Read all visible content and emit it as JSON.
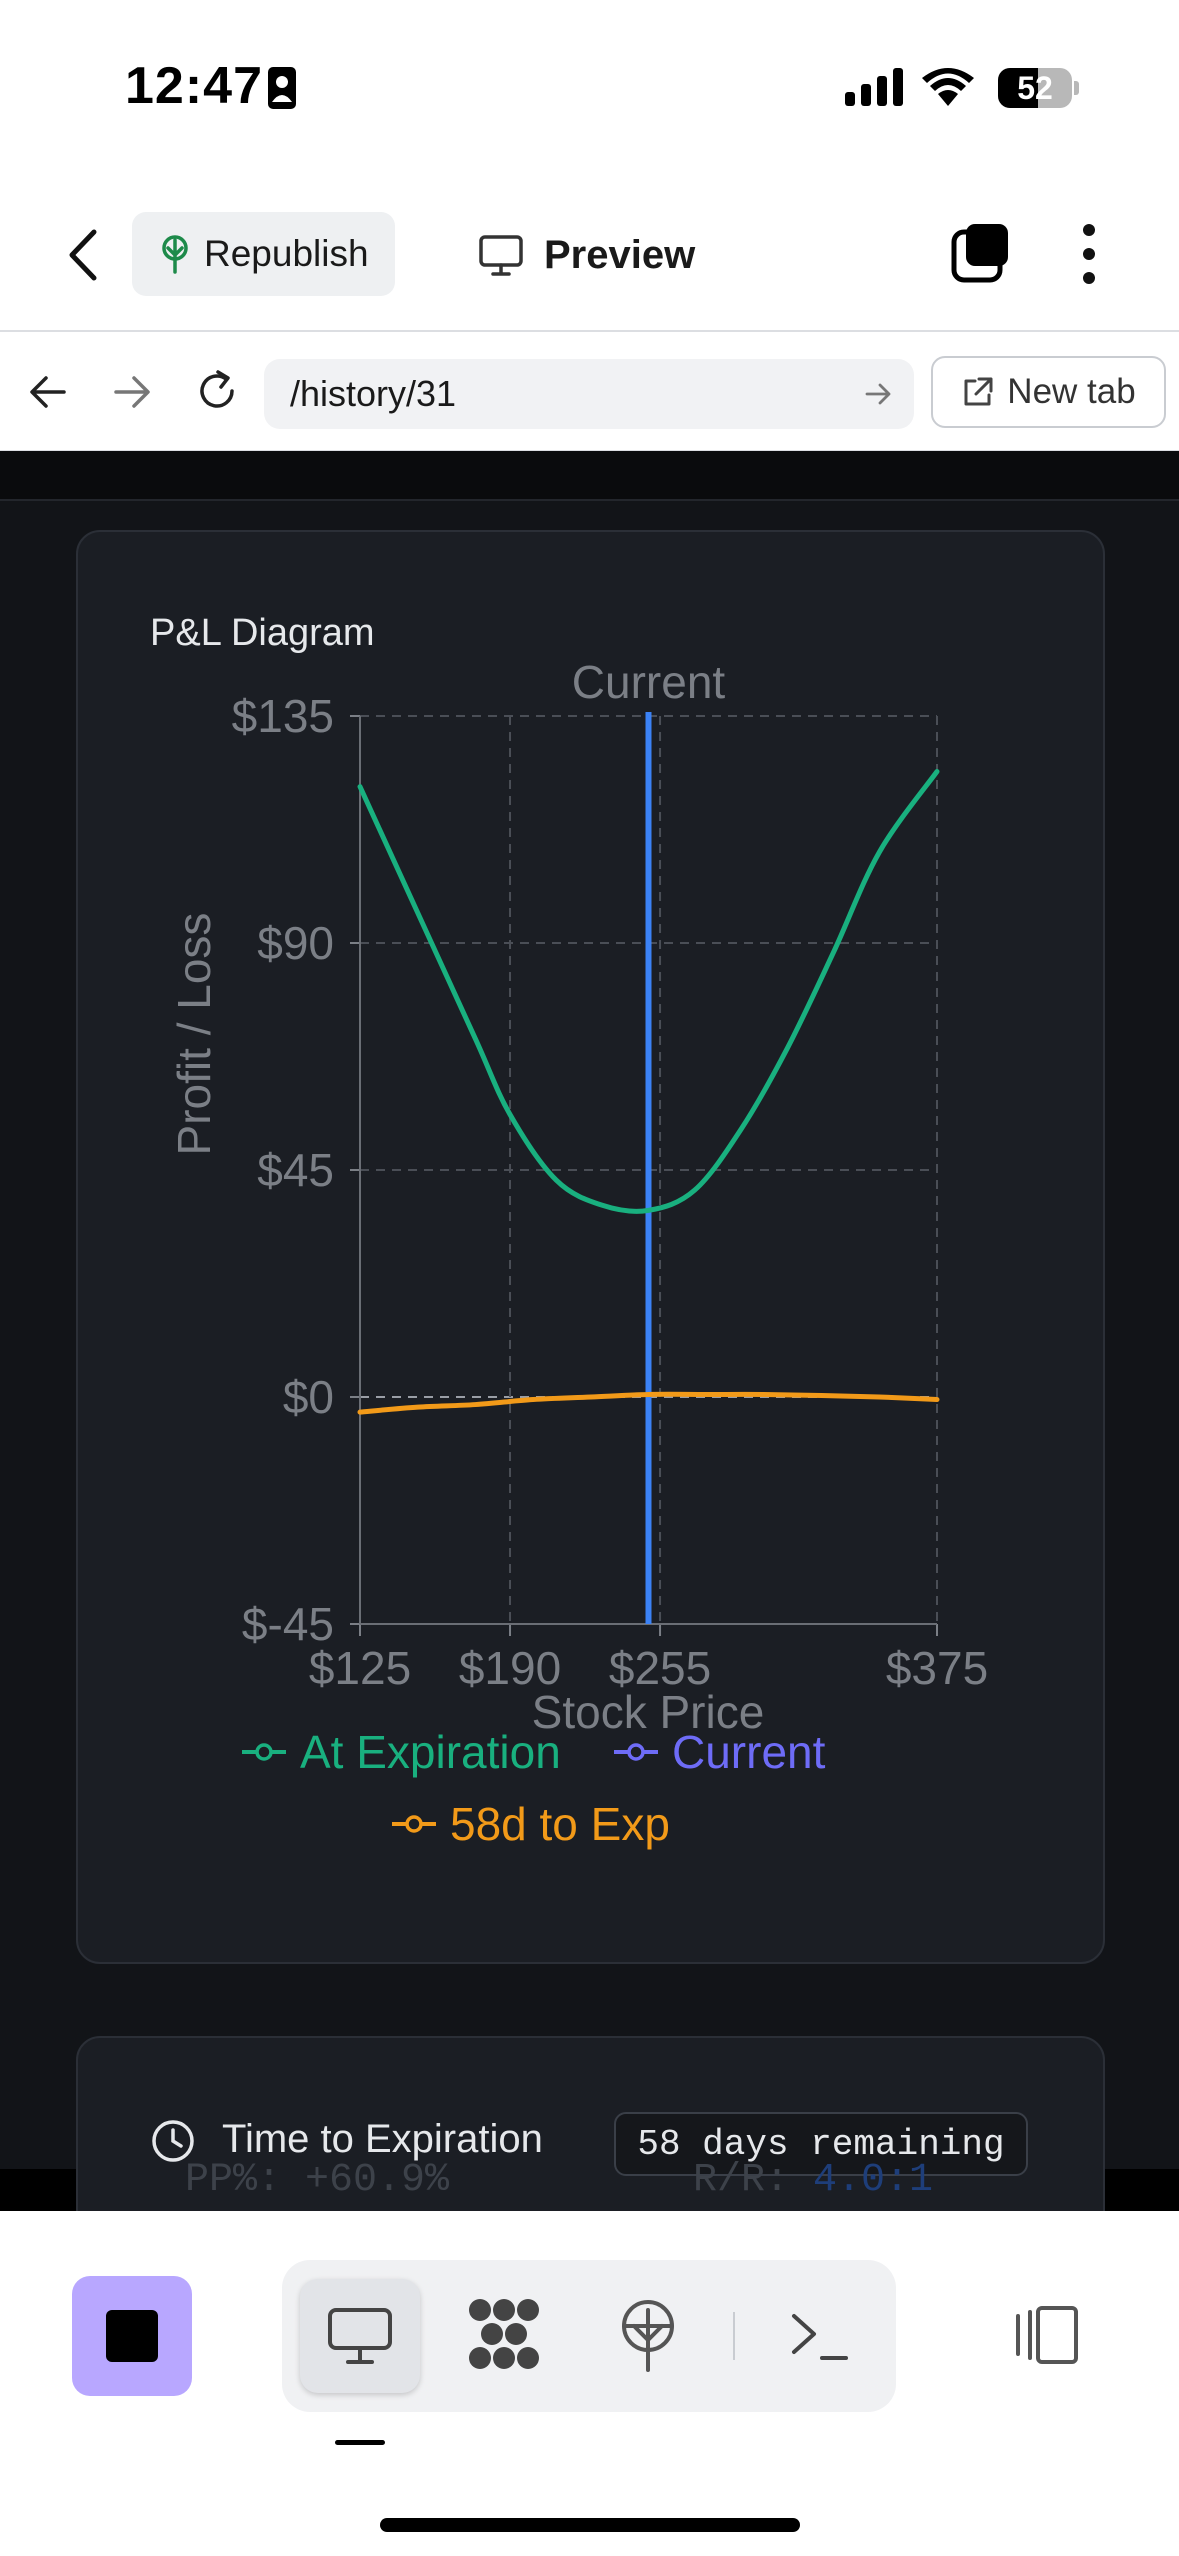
{
  "status_bar": {
    "time": "12:47",
    "battery": "52"
  },
  "header": {
    "republish_label": "Republish",
    "preview_label": "Preview"
  },
  "url_bar": {
    "path": "/history/31",
    "new_tab_label": "New tab"
  },
  "card": {
    "title": "P&L Diagram",
    "time_to_expiration_label": "Time to Expiration",
    "time_to_expiration_value": "58 days remaining",
    "behind_text_1": "PP%: +60.9%",
    "behind_text_2_label": "R/R: ",
    "behind_text_2_value": "4.0:1"
  },
  "chart_data": {
    "type": "line",
    "xlabel": "Stock Price",
    "ylabel": "Profit / Loss",
    "x_ticks": [
      "$125",
      "$190",
      "$255",
      "$375"
    ],
    "y_ticks": [
      "$135",
      "$90",
      "$45",
      "$0",
      "$-45"
    ],
    "xlim": [
      125,
      375
    ],
    "ylim": [
      -45,
      135
    ],
    "current_price": 250,
    "reference_label": "Current",
    "series": [
      {
        "name": "At Expiration",
        "color": "#19b07f",
        "x": [
          125,
          150,
          175,
          190,
          210,
          230,
          250,
          270,
          290,
          310,
          330,
          350,
          375
        ],
        "y": [
          121,
          96,
          71,
          56,
          43,
          38,
          37,
          41,
          53,
          69,
          88,
          108,
          124
        ]
      },
      {
        "name": "Current",
        "color": "#6e6cf7",
        "x": [],
        "y": []
      },
      {
        "name": "58d to Exp",
        "color": "#f29a19",
        "x": [
          125,
          150,
          175,
          200,
          225,
          250,
          275,
          300,
          325,
          350,
          375
        ],
        "y": [
          -3,
          -2,
          -1.5,
          -0.5,
          0,
          0.5,
          0.5,
          0.5,
          0.3,
          0,
          -0.5
        ]
      }
    ],
    "legend": "bottom",
    "grid": true
  }
}
